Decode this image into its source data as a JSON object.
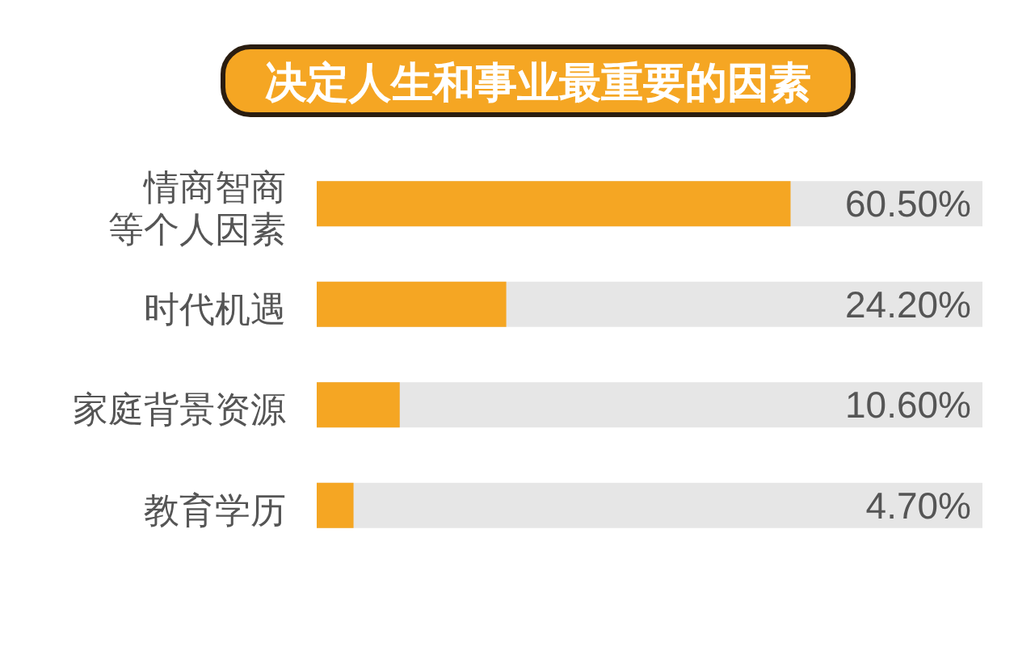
{
  "chart_data": {
    "type": "bar",
    "orientation": "horizontal",
    "title": "决定人生和事业最重要的因素",
    "categories": [
      "情商智商等个人因素",
      "时代机遇",
      "家庭背景资源",
      "教育学历"
    ],
    "values": [
      60.5,
      24.2,
      10.6,
      4.7
    ],
    "color": "#f5a623",
    "value_labels": [
      "60.50%",
      "24.20%",
      "10.60%",
      "4.70%"
    ],
    "xlim": [
      0,
      85
    ],
    "tick_labels": "y"
  }
}
